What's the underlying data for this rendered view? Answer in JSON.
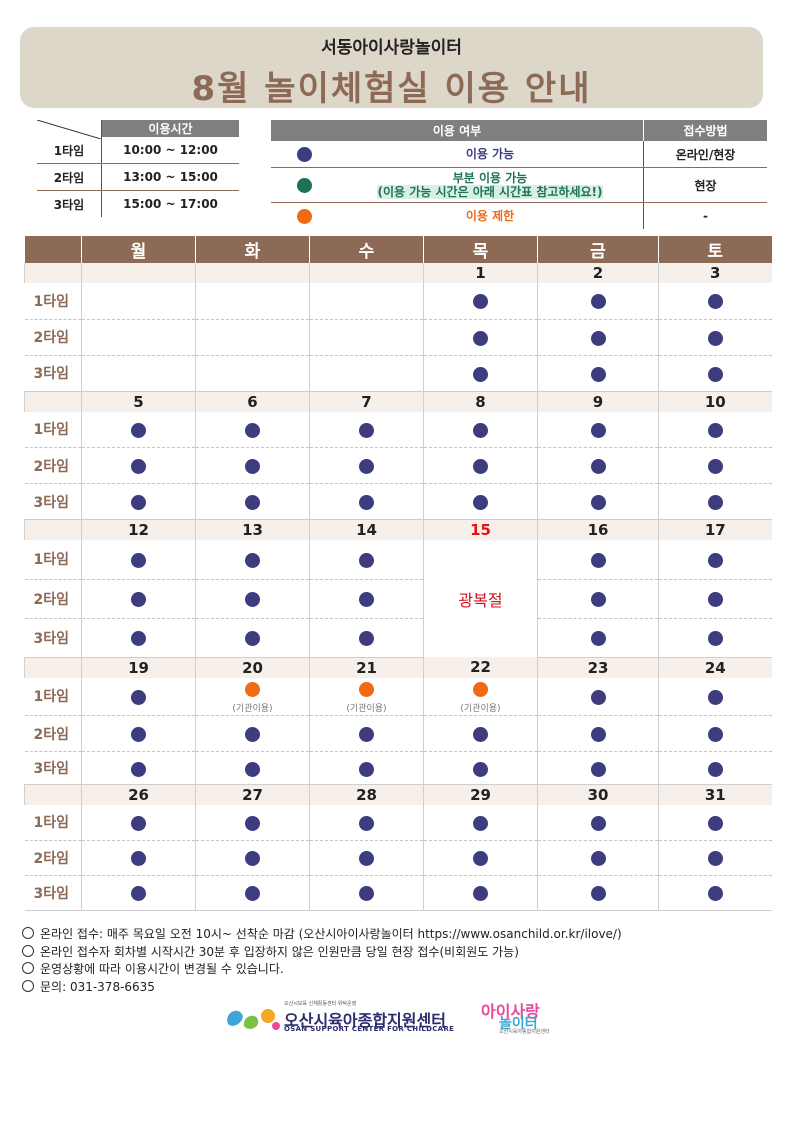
{
  "header": {
    "subtitle": "서동아이사랑놀이터",
    "title": "8월 놀이체험실 이용 안내"
  },
  "time_table": {
    "header": "이용시간",
    "rows": [
      {
        "label": "1타임",
        "time": "10:00 ~ 12:00"
      },
      {
        "label": "2타임",
        "time": "13:00 ~ 15:00"
      },
      {
        "label": "3타임",
        "time": "15:00 ~ 17:00"
      }
    ]
  },
  "legend": {
    "header_status": "이용 여부",
    "header_method": "접수방법",
    "rows": [
      {
        "color": "#3c3c7e",
        "icon": "navy-dot",
        "label": "이용 가능",
        "method": "온라인/현장"
      },
      {
        "color": "#1e7356",
        "icon": "green-dot",
        "label": "부분 이용 가능",
        "sub": "(이용 가능 시간은 아래 시간표 참고하세요!)",
        "method": "현장"
      },
      {
        "color": "#f06a12",
        "icon": "orange-dot",
        "label": "이용 제한",
        "method": "-"
      }
    ]
  },
  "calendar": {
    "days": [
      "월",
      "화",
      "수",
      "목",
      "금",
      "토"
    ],
    "slots": [
      "1타임",
      "2타임",
      "3타임"
    ],
    "holiday_label": "광복절",
    "institution_label": "(기관이용)",
    "weeks": [
      {
        "dates": [
          "",
          "",
          "",
          "1",
          "2",
          "3"
        ]
      },
      {
        "dates": [
          "5",
          "6",
          "7",
          "8",
          "9",
          "10"
        ]
      },
      {
        "dates": [
          "12",
          "13",
          "14",
          "15",
          "16",
          "17"
        ]
      },
      {
        "dates": [
          "19",
          "20",
          "21",
          "22",
          "23",
          "24"
        ]
      },
      {
        "dates": [
          "26",
          "27",
          "28",
          "29",
          "30",
          "31"
        ]
      }
    ]
  },
  "notes": [
    "온라인 접수: 매주 목요일 오전 10시~ 선착순 마감 (오산시아이사랑놀이터 https://www.osanchild.or.kr/ilove/)",
    "온라인 접수자 회차별 시작시간 30분 후 입장하지 않은 인원만큼 당일 현장 접수(비회원도 가능)",
    "운영상황에 따라 이용시간이 변경될 수 있습니다.",
    "문의: 031-378-6635"
  ],
  "logos": {
    "center_small": "오산시보육 신체활동센터 위탁운영",
    "center_name": "오산시육아종합지원센터",
    "center_eng": "OSAN SUPPORT CENTER FOR CHILDCARE",
    "playground_line1": "아이사랑",
    "playground_line2": "놀이터",
    "playground_small": "오산시육아종합지원센터"
  },
  "colors": {
    "brown": "#8c6a55",
    "navy": "#3c3c7e",
    "green": "#1e7356",
    "orange": "#f06a12",
    "holiday_red": "#e3141c"
  }
}
